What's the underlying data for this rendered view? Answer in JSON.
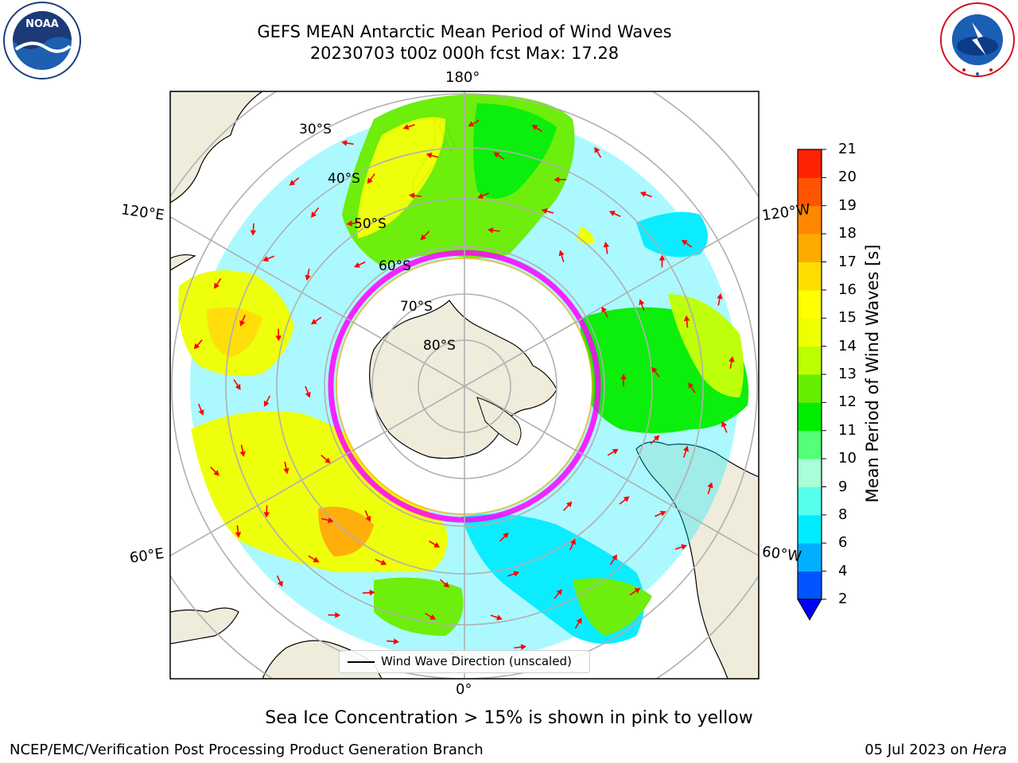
{
  "title": {
    "line1": "GEFS MEAN Antarctic Mean Period of Wind Waves",
    "line2": "20230703 t00z 000h fcst   Max: 17.28"
  },
  "logos": {
    "left": "NOAA",
    "right": "NATIONAL WEATHER SERVICE"
  },
  "map": {
    "projection": "south-polar-stereographic",
    "lon_labels": {
      "top": "180°",
      "bottom": "0°",
      "left_upper": "120°E",
      "left_lower": "60°E",
      "right_upper": "120°W",
      "right_lower": "60°W"
    },
    "lat_labels": [
      "30°S",
      "40°S",
      "50°S",
      "60°S",
      "70°S",
      "80°S"
    ],
    "legend_label": "Wind Wave Direction (unscaled)",
    "arrow_color": "#ff0000",
    "sea_ice_edge_colors": [
      "#ff00ff",
      "#ffaa00",
      "#ffff00"
    ],
    "land_color": "#efecdc"
  },
  "colorbar": {
    "label": "Mean Period of Wind Waves [s]",
    "ticks": [
      "2",
      "4",
      "6",
      "8",
      "9",
      "10",
      "11",
      "12",
      "13",
      "14",
      "15",
      "16",
      "17",
      "18",
      "19",
      "20",
      "21"
    ],
    "colors": [
      "#0055ff",
      "#00b0ff",
      "#00ecff",
      "#55ffee",
      "#a8ffd8",
      "#55ff77",
      "#00ee00",
      "#66ee00",
      "#bbff00",
      "#eeff00",
      "#ffff00",
      "#ffdd00",
      "#ffaa00",
      "#ff8800",
      "#ff5500",
      "#ff2200"
    ],
    "under_color": "#0000ff"
  },
  "footnote": "Sea Ice Concentration > 15% is shown in pink to yellow",
  "credit_left": "NCEP/EMC/Verification Post Processing Product Generation Branch",
  "credit_right_prefix": "05 Jul 2023 on ",
  "credit_right_host": "Hera"
}
